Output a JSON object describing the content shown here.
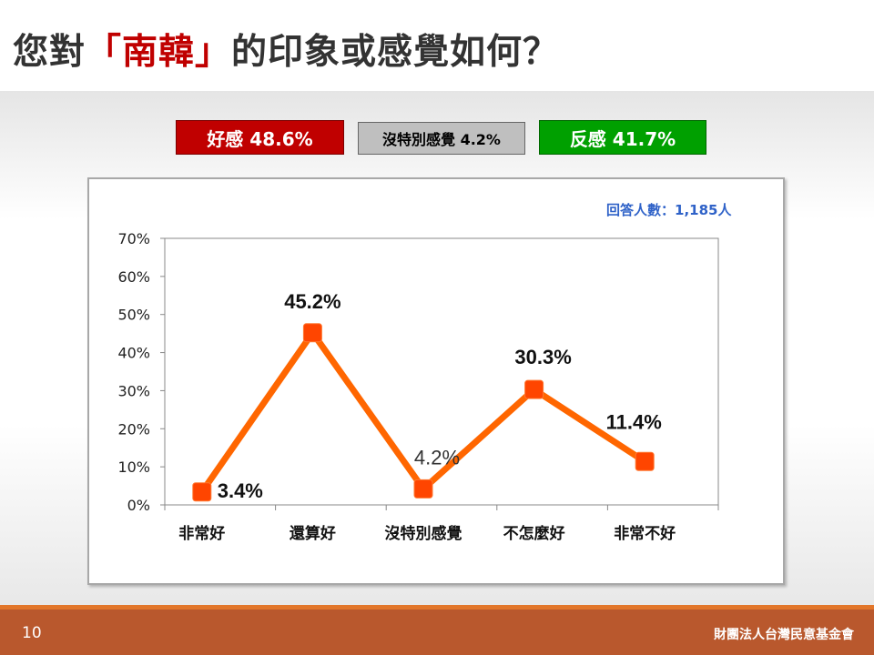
{
  "title": {
    "prefix": "您對",
    "highlight": "「南韓」",
    "suffix": "的印象或感覺如何？"
  },
  "summary": {
    "good": "好感 48.6%",
    "neutral": "沒特別感覺 4.2%",
    "bad": "反感 41.7%"
  },
  "respondents": "回答人數：1,185人",
  "footer": {
    "page_number": "10",
    "organization": "財團法人台灣民意基金會"
  },
  "colors": {
    "line": "#ff6600",
    "marker": "#ff4500",
    "good": "#c00000",
    "neutral": "#bfbfbf",
    "bad": "#00a000",
    "footer": "#b9582d"
  },
  "chart_data": {
    "type": "line",
    "categories": [
      "非常好",
      "還算好",
      "沒特別感覺",
      "不怎麼好",
      "非常不好"
    ],
    "values": [
      3.4,
      45.2,
      4.2,
      30.3,
      11.4
    ],
    "data_labels": [
      "3.4%",
      "45.2%",
      "4.2%",
      "30.3%",
      "11.4%"
    ],
    "ylim": [
      0,
      70
    ],
    "yticks": [
      "0%",
      "10%",
      "20%",
      "30%",
      "40%",
      "50%",
      "60%",
      "70%"
    ],
    "grid": false,
    "legend": "none"
  }
}
